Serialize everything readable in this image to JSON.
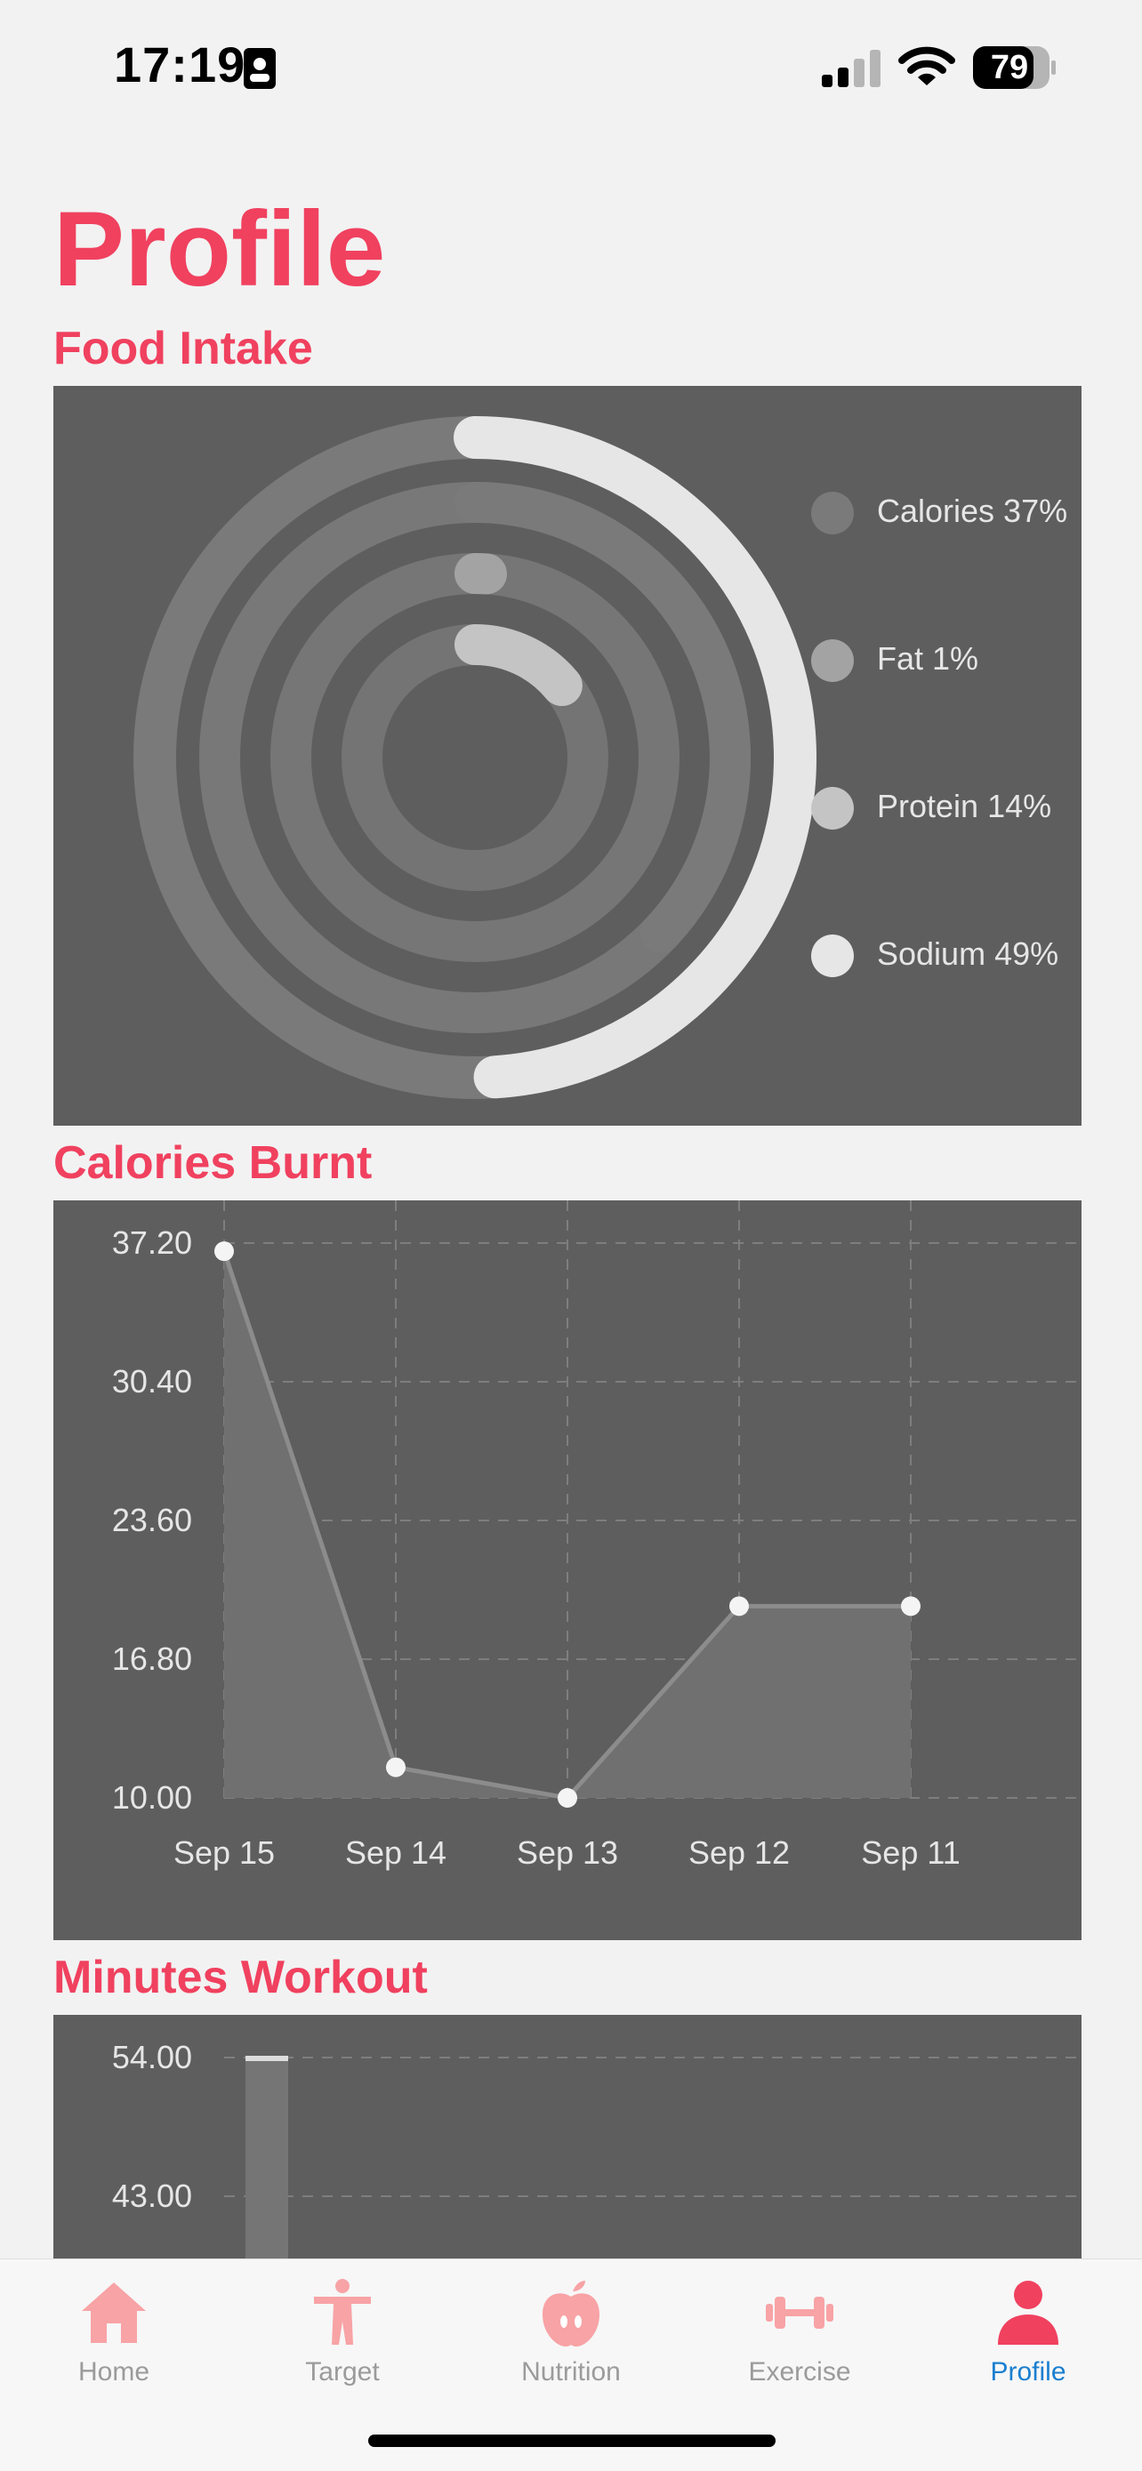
{
  "status_bar": {
    "time": "17:19",
    "battery": "79"
  },
  "page": {
    "title": "Profile"
  },
  "food_intake": {
    "title": "Food Intake",
    "rings": [
      {
        "name": "Calories",
        "percent": 37,
        "label": "Calories 37%",
        "color": "#7a7a7a"
      },
      {
        "name": "Fat",
        "percent": 1,
        "label": "Fat 1%",
        "color": "#a3a3a3"
      },
      {
        "name": "Protein",
        "percent": 14,
        "label": "Protein 14%",
        "color": "#c4c4c4"
      },
      {
        "name": "Sodium",
        "percent": 49,
        "label": "Sodium 49%",
        "color": "#e6e6e6"
      }
    ]
  },
  "calories_burnt": {
    "title": "Calories Burnt",
    "chart_data": {
      "type": "area",
      "categories": [
        "Sep 15",
        "Sep 14",
        "Sep 13",
        "Sep 12",
        "Sep 11"
      ],
      "values": [
        36.8,
        11.5,
        10.0,
        19.4,
        19.4
      ],
      "yticks": [
        "10.00",
        "16.80",
        "23.60",
        "30.40",
        "37.20"
      ],
      "ylim": [
        10.0,
        37.2
      ],
      "grid": true
    }
  },
  "minutes_workout": {
    "title": "Minutes Workout",
    "chart_data": {
      "type": "bar",
      "values": [
        54.0
      ],
      "yticks": [
        "54.00",
        "43.00"
      ],
      "grid": true
    }
  },
  "tabs": [
    {
      "label": "Home",
      "icon": "house-icon"
    },
    {
      "label": "Target",
      "icon": "figure-icon"
    },
    {
      "label": "Nutrition",
      "icon": "apple-icon"
    },
    {
      "label": "Exercise",
      "icon": "dumbbell-icon"
    },
    {
      "label": "Profile",
      "icon": "person-icon"
    }
  ],
  "colors": {
    "accent": "#f0415f",
    "active_tab": "#1a7fd0",
    "tab_icon": "#f8a3a6",
    "card": "#5e5e5e"
  }
}
